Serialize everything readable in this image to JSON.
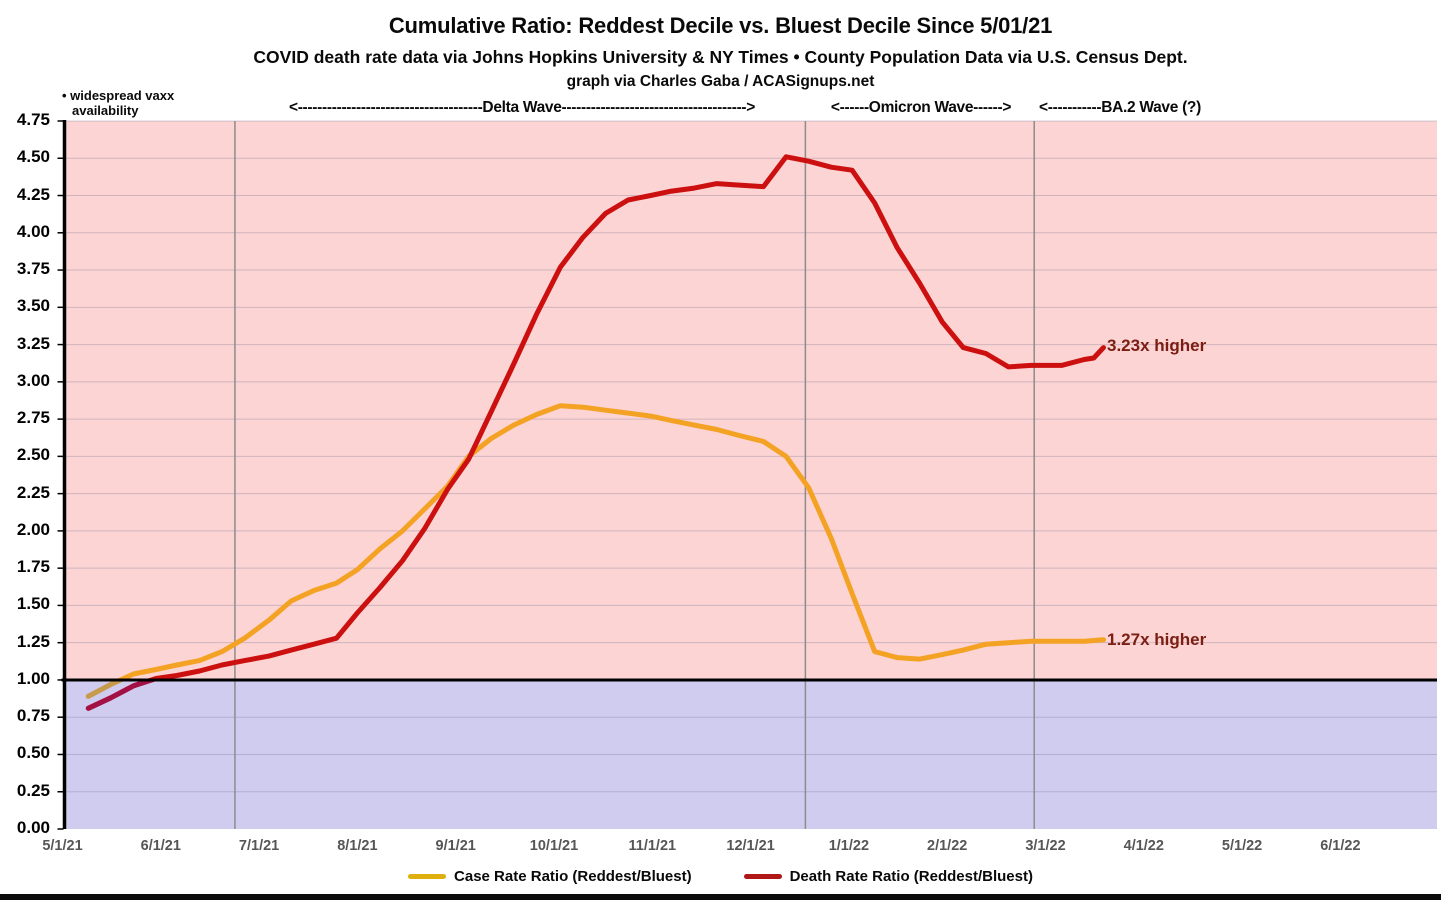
{
  "header": {
    "title": "Cumulative Ratio: Reddest Decile vs. Bluest Decile Since 5/01/21",
    "subtitle": "COVID death rate data via Johns Hopkins University & NY Times • County Population Data via U.S. Census Dept.",
    "credit": "graph via Charles Gaba / ACASignups.net"
  },
  "annotations": {
    "vaxx_line1": "• widespread vaxx",
    "vaxx_line2": "availability",
    "delta_wave": "<--------------------------------------Delta Wave-------------------------------------->",
    "omicron_wave": "<------Omicron Wave------>",
    "ba2_wave": "<-----------BA.2 Wave (?)",
    "death_end_label": "3.23x higher",
    "case_end_label": "1.27x higher"
  },
  "legend": [
    {
      "label": "Case Rate Ratio (Reddest/Bluest)",
      "color": "#DFAF0E"
    },
    {
      "label": "Death Rate Ratio (Reddest/Bluest)",
      "color": "#B01717"
    }
  ],
  "chart_data": {
    "type": "line",
    "title": "Cumulative Ratio: Reddest Decile vs. Bluest Decile Since 5/01/21",
    "x_ticks": [
      "5/1/21",
      "6/1/21",
      "7/1/21",
      "8/1/21",
      "9/1/21",
      "10/1/21",
      "11/1/21",
      "12/1/21",
      "1/1/22",
      "2/1/22",
      "3/1/22",
      "4/1/22",
      "5/1/22",
      "6/1/22"
    ],
    "y_ticks": [
      "0.00",
      "0.25",
      "0.50",
      "0.75",
      "1.00",
      "1.25",
      "1.50",
      "1.75",
      "2.00",
      "2.25",
      "2.50",
      "2.75",
      "3.00",
      "3.25",
      "3.50",
      "3.75",
      "4.00",
      "4.25",
      "4.50",
      "4.75"
    ],
    "ylim": [
      0,
      4.75
    ],
    "baseline": 1.0,
    "grid": true,
    "legend_position": "bottom",
    "region_colors": {
      "above_1x": "#FBD4D3",
      "below_1x": "#CFCCF0"
    },
    "wave_boundaries": [
      "2021-06-24",
      "2021-12-18",
      "2022-02-28"
    ],
    "series": [
      {
        "id": "case-rate-ratio",
        "name": "Case Rate Ratio (Reddest/Bluest)",
        "color": "#F4A224",
        "color_below_one": "#C79B4D",
        "end_label": "1.27x higher",
        "data": [
          [
            "2021-05-09",
            0.89
          ],
          [
            "2021-05-16",
            0.97
          ],
          [
            "2021-05-23",
            1.04
          ],
          [
            "2021-05-30",
            1.07
          ],
          [
            "2021-06-06",
            1.1
          ],
          [
            "2021-06-13",
            1.13
          ],
          [
            "2021-06-20",
            1.19
          ],
          [
            "2021-06-27",
            1.28
          ],
          [
            "2021-07-04",
            1.4
          ],
          [
            "2021-07-11",
            1.53
          ],
          [
            "2021-07-18",
            1.6
          ],
          [
            "2021-07-25",
            1.65
          ],
          [
            "2021-08-01",
            1.74
          ],
          [
            "2021-08-08",
            1.88
          ],
          [
            "2021-08-15",
            2.0
          ],
          [
            "2021-08-22",
            2.15
          ],
          [
            "2021-08-29",
            2.3
          ],
          [
            "2021-09-05",
            2.5
          ],
          [
            "2021-09-12",
            2.62
          ],
          [
            "2021-09-19",
            2.71
          ],
          [
            "2021-09-26",
            2.78
          ],
          [
            "2021-10-03",
            2.84
          ],
          [
            "2021-10-10",
            2.83
          ],
          [
            "2021-10-17",
            2.81
          ],
          [
            "2021-10-24",
            2.79
          ],
          [
            "2021-10-31",
            2.77
          ],
          [
            "2021-11-07",
            2.74
          ],
          [
            "2021-11-14",
            2.71
          ],
          [
            "2021-11-21",
            2.68
          ],
          [
            "2021-11-28",
            2.64
          ],
          [
            "2021-12-05",
            2.6
          ],
          [
            "2021-12-12",
            2.5
          ],
          [
            "2021-12-19",
            2.29
          ],
          [
            "2021-12-26",
            1.95
          ],
          [
            "2022-01-02",
            1.58
          ],
          [
            "2022-01-09",
            1.19
          ],
          [
            "2022-01-16",
            1.15
          ],
          [
            "2022-01-23",
            1.14
          ],
          [
            "2022-01-30",
            1.17
          ],
          [
            "2022-02-06",
            1.2
          ],
          [
            "2022-02-13",
            1.24
          ],
          [
            "2022-02-20",
            1.25
          ],
          [
            "2022-02-27",
            1.26
          ],
          [
            "2022-03-06",
            1.26
          ],
          [
            "2022-03-13",
            1.26
          ],
          [
            "2022-03-19",
            1.27
          ]
        ]
      },
      {
        "id": "death-rate-ratio",
        "name": "Death Rate Ratio (Reddest/Bluest)",
        "color": "#CC0F0F",
        "color_below_one": "#A21045",
        "end_label": "3.23x higher",
        "data": [
          [
            "2021-05-09",
            0.81
          ],
          [
            "2021-05-16",
            0.88
          ],
          [
            "2021-05-23",
            0.96
          ],
          [
            "2021-05-30",
            1.01
          ],
          [
            "2021-06-06",
            1.03
          ],
          [
            "2021-06-13",
            1.06
          ],
          [
            "2021-06-20",
            1.1
          ],
          [
            "2021-06-27",
            1.13
          ],
          [
            "2021-07-04",
            1.16
          ],
          [
            "2021-07-11",
            1.2
          ],
          [
            "2021-07-18",
            1.24
          ],
          [
            "2021-07-25",
            1.28
          ],
          [
            "2021-08-01",
            1.45
          ],
          [
            "2021-08-08",
            1.62
          ],
          [
            "2021-08-15",
            1.8
          ],
          [
            "2021-08-22",
            2.02
          ],
          [
            "2021-08-29",
            2.28
          ],
          [
            "2021-09-05",
            2.48
          ],
          [
            "2021-09-12",
            2.8
          ],
          [
            "2021-09-19",
            3.12
          ],
          [
            "2021-09-26",
            3.45
          ],
          [
            "2021-10-03",
            3.77
          ],
          [
            "2021-10-10",
            3.97
          ],
          [
            "2021-10-17",
            4.13
          ],
          [
            "2021-10-24",
            4.22
          ],
          [
            "2021-10-31",
            4.25
          ],
          [
            "2021-11-07",
            4.28
          ],
          [
            "2021-11-14",
            4.3
          ],
          [
            "2021-11-21",
            4.33
          ],
          [
            "2021-11-28",
            4.32
          ],
          [
            "2021-12-05",
            4.31
          ],
          [
            "2021-12-12",
            4.51
          ],
          [
            "2021-12-19",
            4.48
          ],
          [
            "2021-12-26",
            4.44
          ],
          [
            "2022-01-02",
            4.42
          ],
          [
            "2022-01-09",
            4.2
          ],
          [
            "2022-01-16",
            3.9
          ],
          [
            "2022-01-23",
            3.66
          ],
          [
            "2022-01-30",
            3.4
          ],
          [
            "2022-02-06",
            3.23
          ],
          [
            "2022-02-13",
            3.19
          ],
          [
            "2022-02-20",
            3.1
          ],
          [
            "2022-02-27",
            3.11
          ],
          [
            "2022-03-06",
            3.11
          ],
          [
            "2022-03-13",
            3.15
          ],
          [
            "2022-03-16",
            3.16
          ],
          [
            "2022-03-19",
            3.23
          ]
        ]
      }
    ]
  }
}
